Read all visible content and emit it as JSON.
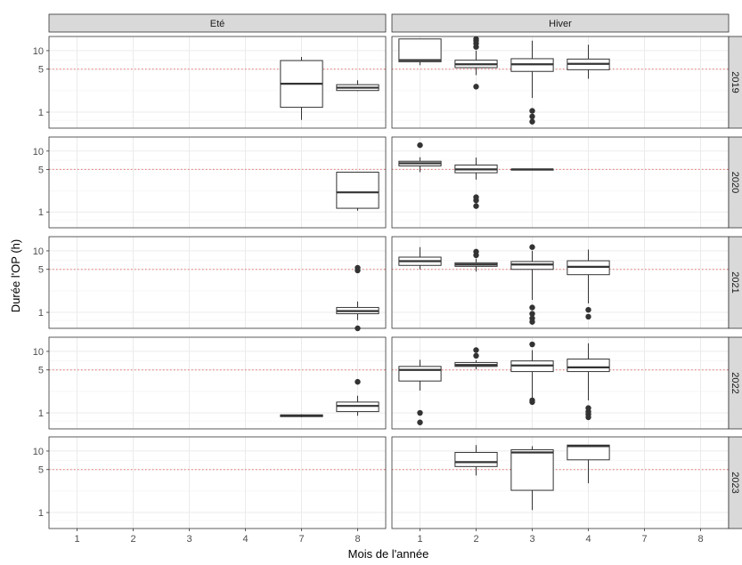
{
  "chart_data": {
    "type": "boxplot",
    "ylabel": "Durée l'OP (h)",
    "xlabel": "Mois de l'année",
    "y_scale": "log10",
    "ylim": [
      0.55,
      17
    ],
    "y_ticks": [
      1,
      5,
      10
    ],
    "reference_line": {
      "y": 5,
      "style": "dotted",
      "color": "#e8706b"
    },
    "grid": true,
    "col_facets": [
      "Eté",
      "Hiver"
    ],
    "row_facets": [
      "2019",
      "2020",
      "2021",
      "2022",
      "2023"
    ],
    "x_categories": [
      "1",
      "2",
      "3",
      "4",
      "7",
      "8"
    ],
    "panels": {
      "2019": {
        "Eté": [
          {
            "x": "7",
            "low": 0.75,
            "q1": 1.2,
            "median": 2.9,
            "q3": 6.9,
            "high": 7.9,
            "outliers": []
          },
          {
            "x": "8",
            "low": 2.2,
            "q1": 2.25,
            "median": 2.5,
            "q3": 2.8,
            "high": 3.3,
            "outliers": []
          }
        ],
        "Hiver": [
          {
            "x": "1",
            "low": 5.8,
            "q1": 6.6,
            "median": 7.0,
            "q3": 15.5,
            "high": 15.5,
            "outliers": []
          },
          {
            "x": "2",
            "low": 4.0,
            "q1": 5.3,
            "median": 6.0,
            "q3": 7.0,
            "high": 10.0,
            "outliers": [
              2.6,
              11.5,
              13.0,
              14.5,
              15.5
            ]
          },
          {
            "x": "3",
            "low": 1.7,
            "q1": 4.6,
            "median": 6.0,
            "q3": 7.4,
            "high": 14.5,
            "outliers": [
              0.7,
              0.85,
              1.05
            ]
          },
          {
            "x": "4",
            "low": 3.5,
            "q1": 4.9,
            "median": 6.1,
            "q3": 7.3,
            "high": 12.5,
            "outliers": []
          }
        ]
      },
      "2020": {
        "Eté": [
          {
            "x": "8",
            "low": 1.05,
            "q1": 1.15,
            "median": 2.1,
            "q3": 4.5,
            "high": 4.5,
            "outliers": []
          }
        ],
        "Hiver": [
          {
            "x": "1",
            "low": 4.5,
            "q1": 5.7,
            "median": 6.3,
            "q3": 6.8,
            "high": 7.9,
            "outliers": [
              12.5
            ]
          },
          {
            "x": "2",
            "low": 3.4,
            "q1": 4.4,
            "median": 5.0,
            "q3": 5.9,
            "high": 7.8,
            "outliers": [
              1.25,
              1.55,
              1.75
            ]
          },
          {
            "x": "3",
            "low": 4.95,
            "q1": 4.97,
            "median": 5.0,
            "q3": 5.03,
            "high": 5.05,
            "outliers": []
          }
        ]
      },
      "2021": {
        "Eté": [
          {
            "x": "8",
            "low": 0.75,
            "q1": 0.95,
            "median": 1.05,
            "q3": 1.2,
            "high": 1.5,
            "outliers": [
              0.55,
              4.8,
              5.3
            ]
          }
        ],
        "Hiver": [
          {
            "x": "1",
            "low": 5.0,
            "q1": 5.8,
            "median": 6.8,
            "q3": 7.9,
            "high": 11.5,
            "outliers": []
          },
          {
            "x": "2",
            "low": 4.6,
            "q1": 5.6,
            "median": 6.0,
            "q3": 6.4,
            "high": 7.5,
            "outliers": [
              8.5,
              9.7
            ]
          },
          {
            "x": "3",
            "low": 1.6,
            "q1": 5.0,
            "median": 6.0,
            "q3": 6.7,
            "high": 10.0,
            "outliers": [
              0.7,
              0.8,
              0.95,
              1.2,
              11.5
            ]
          },
          {
            "x": "4",
            "low": 1.4,
            "q1": 4.1,
            "median": 5.5,
            "q3": 6.9,
            "high": 10.5,
            "outliers": [
              0.85,
              1.1
            ]
          }
        ]
      },
      "2022": {
        "Eté": [
          {
            "x": "7",
            "low": 0.85,
            "q1": 0.87,
            "median": 0.9,
            "q3": 0.93,
            "high": 0.95,
            "outliers": []
          },
          {
            "x": "8",
            "low": 0.9,
            "q1": 1.05,
            "median": 1.3,
            "q3": 1.5,
            "high": 1.9,
            "outliers": [
              3.2
            ]
          }
        ],
        "Hiver": [
          {
            "x": "1",
            "low": 2.3,
            "q1": 3.3,
            "median": 5.0,
            "q3": 5.7,
            "high": 7.3,
            "outliers": [
              0.7,
              1.0
            ]
          },
          {
            "x": "2",
            "low": 5.1,
            "q1": 5.7,
            "median": 6.0,
            "q3": 6.6,
            "high": 7.2,
            "outliers": [
              8.5,
              10.5
            ]
          },
          {
            "x": "3",
            "low": 1.7,
            "q1": 4.7,
            "median": 5.9,
            "q3": 7.0,
            "high": 10.5,
            "outliers": [
              1.5,
              1.6,
              13.0
            ]
          },
          {
            "x": "4",
            "low": 1.6,
            "q1": 4.7,
            "median": 5.5,
            "q3": 7.5,
            "high": 13.5,
            "outliers": [
              0.85,
              0.95,
              1.05,
              1.2
            ]
          }
        ]
      },
      "2023": {
        "Eté": [],
        "Hiver": [
          {
            "x": "2",
            "low": 4.0,
            "q1": 5.6,
            "median": 6.6,
            "q3": 9.5,
            "high": 12.5,
            "outliers": []
          },
          {
            "x": "3",
            "low": 1.1,
            "q1": 2.3,
            "median": 9.5,
            "q3": 10.5,
            "high": 12.0,
            "outliers": []
          },
          {
            "x": "4",
            "low": 3.0,
            "q1": 7.2,
            "median": 12.0,
            "q3": 12.5,
            "high": 12.5,
            "outliers": []
          }
        ]
      }
    }
  }
}
